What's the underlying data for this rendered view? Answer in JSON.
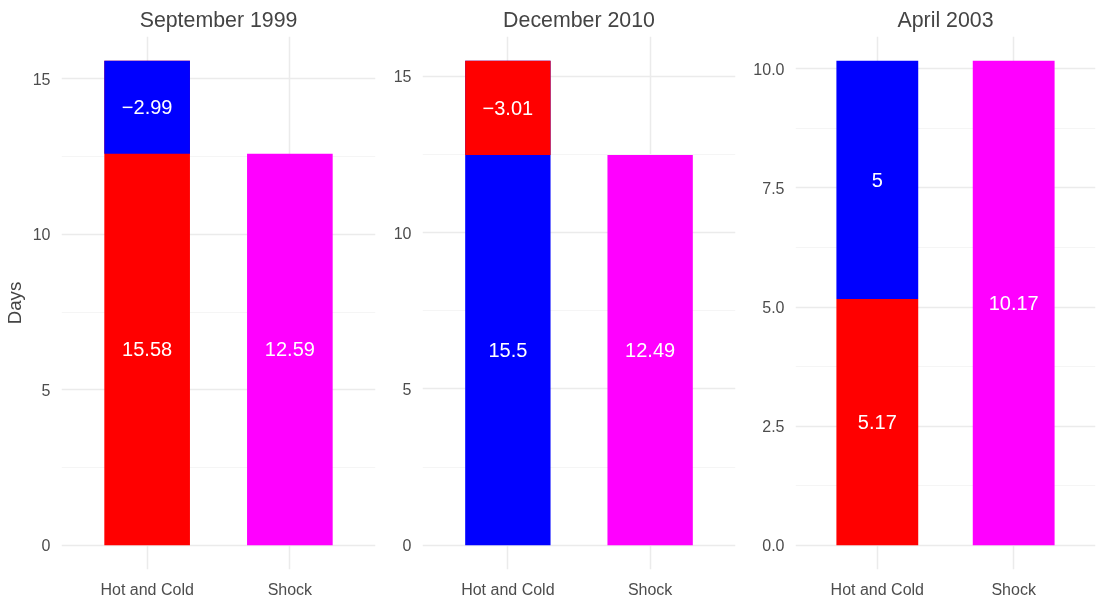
{
  "chart_data": [
    {
      "type": "bar",
      "title": "September 1999",
      "ylabel": "Days",
      "categories": [
        "Hot and Cold",
        "Shock"
      ],
      "grid": true,
      "ylim": [
        -0.78,
        16.36
      ],
      "yticks": [
        0,
        5,
        10,
        15
      ],
      "data_labels": true,
      "series": [
        {
          "color": "#ff0000",
          "values": [
            15.58,
            null
          ],
          "base": [
            0,
            null
          ]
        },
        {
          "color": "#0000ff",
          "values": [
            -2.99,
            null
          ],
          "base": [
            15.58,
            null
          ]
        },
        {
          "color": "#ff00ff",
          "values": [
            null,
            12.59
          ],
          "base": [
            null,
            0
          ]
        }
      ]
    },
    {
      "type": "bar",
      "title": "December 2010",
      "categories": [
        "Hot and Cold",
        "Shock"
      ],
      "grid": true,
      "ylim": [
        -0.78,
        16.28
      ],
      "yticks": [
        0,
        5,
        10,
        15
      ],
      "data_labels": true,
      "series": [
        {
          "color": "#0000ff",
          "values": [
            15.5,
            null
          ],
          "base": [
            0,
            null
          ]
        },
        {
          "color": "#ff0000",
          "values": [
            -3.01,
            null
          ],
          "base": [
            15.5,
            null
          ]
        },
        {
          "color": "#ff00ff",
          "values": [
            null,
            12.49
          ],
          "base": [
            null,
            0
          ]
        }
      ]
    },
    {
      "type": "bar",
      "title": "April 2003",
      "categories": [
        "Hot and Cold",
        "Shock"
      ],
      "stacked": true,
      "grid": true,
      "ylim": [
        -0.51,
        10.68
      ],
      "yticks": [
        {
          "value": 0,
          "label": "0.0"
        },
        {
          "value": 2.5,
          "label": "2.5"
        },
        {
          "value": 5,
          "label": "5.0"
        },
        {
          "value": 7.5,
          "label": "7.5"
        },
        {
          "value": 10,
          "label": "10.0"
        }
      ],
      "series": [
        {
          "color": "#ff0000",
          "values": [
            5.17,
            null
          ],
          "value_labels": [
            "5.17",
            null
          ]
        },
        {
          "color": "#0000ff",
          "values": [
            5,
            null
          ],
          "value_labels": [
            "5",
            null
          ]
        },
        {
          "color": "#ff00ff",
          "values": [
            null,
            10.17
          ],
          "value_labels": [
            null,
            "10.17"
          ]
        }
      ]
    }
  ]
}
